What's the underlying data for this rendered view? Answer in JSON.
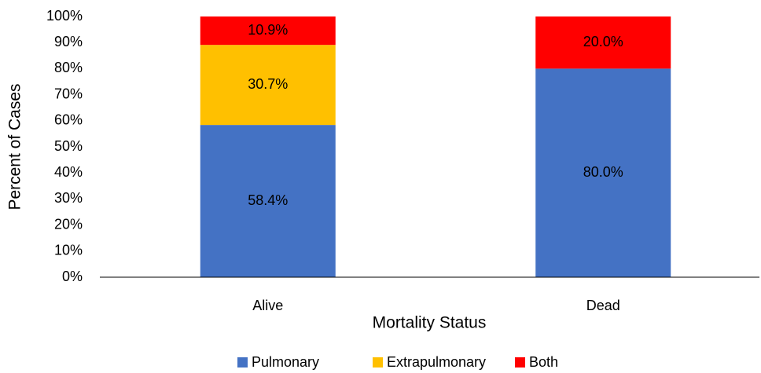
{
  "chart_data": {
    "type": "stacked_bar",
    "x_label": "Mortality Status",
    "y_label": "Percent of Cases",
    "categories": [
      "Alive",
      "Dead"
    ],
    "series": [
      {
        "name": "Pulmonary",
        "color": "#4472c4",
        "values": [
          58.4,
          80.0
        ],
        "value_labels": [
          "58.4%",
          "80.0%"
        ]
      },
      {
        "name": "Extrapulmonary",
        "color": "#ffc000",
        "values": [
          30.7,
          null
        ],
        "value_labels": [
          "30.7%",
          null
        ]
      },
      {
        "name": "Both",
        "color": "#ff0000",
        "values": [
          10.9,
          20.0
        ],
        "value_labels": [
          "10.9%",
          "20.0%"
        ]
      }
    ],
    "ylim": [
      0,
      100
    ],
    "yticks": [
      {
        "value": 0,
        "label": "0%"
      },
      {
        "value": 10,
        "label": "10%"
      },
      {
        "value": 20,
        "label": "20%"
      },
      {
        "value": 30,
        "label": "30%"
      },
      {
        "value": 40,
        "label": "40%"
      },
      {
        "value": 50,
        "label": "50%"
      },
      {
        "value": 60,
        "label": "60%"
      },
      {
        "value": 70,
        "label": "70%"
      },
      {
        "value": 80,
        "label": "80%"
      },
      {
        "value": 90,
        "label": "90%"
      },
      {
        "value": 100,
        "label": "100%"
      }
    ],
    "grid": false,
    "legend": "bottom"
  }
}
